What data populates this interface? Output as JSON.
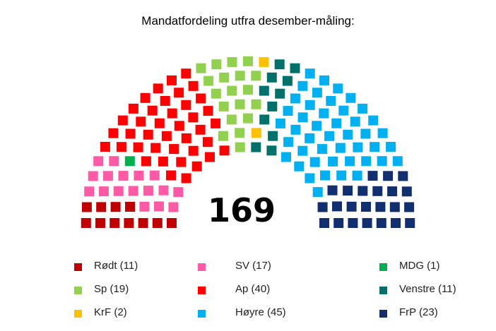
{
  "chart_data": {
    "type": "parliament",
    "title": "Mandatfordeling utfra desember-måling:",
    "total_label": "169",
    "total": 169,
    "parties": [
      {
        "name": "Rødt",
        "label": "Rødt (11)",
        "seats": 11,
        "color": "#c00000"
      },
      {
        "name": "SV",
        "label": "SV (17)",
        "seats": 17,
        "color": "#ff5aa5"
      },
      {
        "name": "MDG",
        "label": "MDG (1)",
        "seats": 1,
        "color": "#00b050"
      },
      {
        "name": "Ap",
        "label": "Ap (40)",
        "seats": 40,
        "color": "#ff0000"
      },
      {
        "name": "Sp",
        "label": "Sp (19)",
        "seats": 19,
        "color": "#92d050"
      },
      {
        "name": "KrF",
        "label": "KrF (2)",
        "seats": 2,
        "color": "#ffc000"
      },
      {
        "name": "Venstre",
        "label": "Venstre (11)",
        "seats": 11,
        "color": "#00706a"
      },
      {
        "name": "Høyre",
        "label": "Høyre (45)",
        "seats": 45,
        "color": "#00b0f0"
      },
      {
        "name": "FrP",
        "label": "FrP (23)",
        "seats": 23,
        "color": "#112f6e"
      }
    ],
    "legend_order": [
      "Rødt",
      "SV",
      "MDG",
      "Sp",
      "Ap",
      "Venstre",
      "KrF",
      "Høyre",
      "FrP"
    ]
  }
}
